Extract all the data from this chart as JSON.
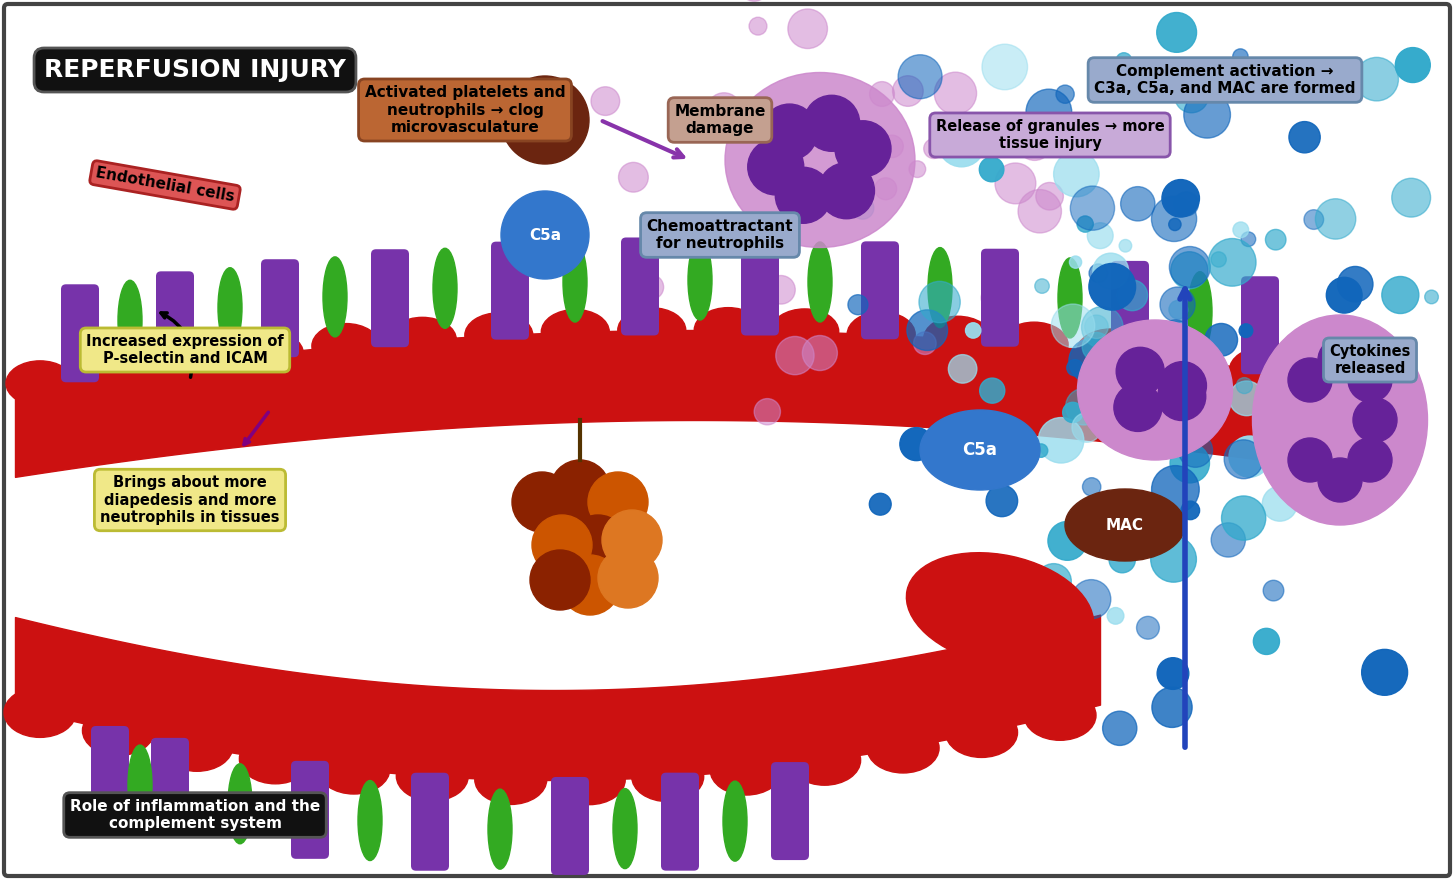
{
  "bg_color": "#ffffff",
  "border_color": "#444444",
  "vessel_color": "#cc1111",
  "receptor_purple": "#7733aa",
  "receptor_green": "#33aa22",
  "platelet_dark": "#8b2200",
  "platelet_mid": "#cc5500",
  "platelet_light": "#dd7722",
  "c5a_color": "#3377cc",
  "mac_color": "#6b2510",
  "dot_colors_dark": "#1166bb",
  "dot_colors_mid": "#33aacc",
  "dot_colors_light": "#99ddee",
  "rbc_color": "#cc1111",
  "neutrophil_body": "#cc88cc",
  "neutrophil_nucleus": "#662299",
  "neutrophil_granule": "#9944bb",
  "title_bg": "#111111",
  "title_fg": "#ffffff",
  "title_text": "REPERFUSION INJURY",
  "subtitle_bg": "#111111",
  "subtitle_fg": "#ffffff",
  "subtitle_text": "Role of inflammation and the\ncomplement system",
  "complement_bg": "#99aacc",
  "complement_text": "Complement activation →\nC3a, C5a, and MAC are formed",
  "platelet_box_bg": "#bb6633",
  "platelet_box_text": "Activated platelets and\nneutrophils → clog\nmicrovasculature",
  "pselectin_bg": "#f0e888",
  "pselectin_text": "Increased expression of\nP-selectin and ICAM",
  "diapedesis_bg": "#f0e888",
  "diapedesis_text": "Brings about more\ndiapedesis and more\nneutrophils in tissues",
  "cytokines_bg": "#99aacc",
  "cytokines_text": "Cytokines\nreleased",
  "c5a_chemo_bg": "#99aacc",
  "c5a_chemo_text": "Chemoattractant\nfor neutrophils",
  "mac_damage_bg": "#c4a090",
  "mac_damage_text": "Membrane\ndamage",
  "release_bg": "#c8aad8",
  "release_text": "Release of granules → more\ntissue injury",
  "endothelial_bg": "#dd5555",
  "endothelial_text": "Endothelial cells"
}
